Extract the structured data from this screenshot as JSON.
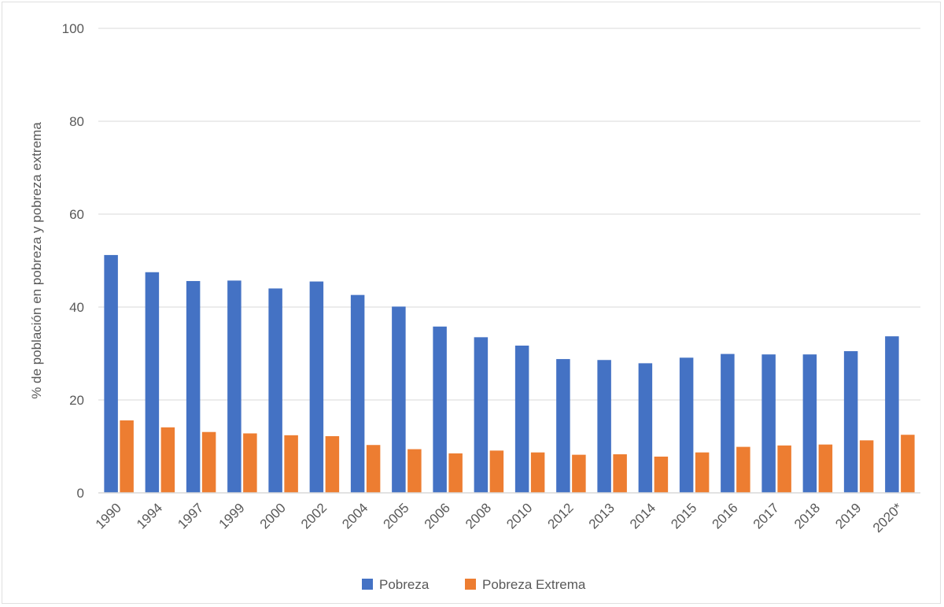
{
  "chart_data": {
    "type": "bar",
    "ylabel": "% de población en pobreza y pobreza extrema",
    "xlabel": "",
    "ylim": [
      0,
      100
    ],
    "yticks": [
      0,
      20,
      40,
      60,
      80,
      100
    ],
    "grid": true,
    "legend_position": "bottom",
    "categories": [
      "1990",
      "1994",
      "1997",
      "1999",
      "2000",
      "2002",
      "2004",
      "2005",
      "2006",
      "2008",
      "2010",
      "2012",
      "2013",
      "2014",
      "2015",
      "2016",
      "2017",
      "2018",
      "2019",
      "2020*"
    ],
    "series": [
      {
        "name": "Pobreza",
        "color": "#4472C4",
        "values": [
          51.2,
          47.5,
          45.6,
          45.7,
          44.0,
          45.5,
          42.6,
          40.1,
          35.8,
          33.5,
          31.7,
          28.8,
          28.6,
          27.9,
          29.1,
          29.9,
          29.8,
          29.8,
          30.5,
          33.7
        ]
      },
      {
        "name": "Pobreza Extrema",
        "color": "#ED7D31",
        "values": [
          15.6,
          14.1,
          13.1,
          12.8,
          12.4,
          12.2,
          10.3,
          9.4,
          8.5,
          9.1,
          8.7,
          8.2,
          8.3,
          7.8,
          8.7,
          9.9,
          10.2,
          10.4,
          11.3,
          12.5
        ]
      }
    ]
  }
}
